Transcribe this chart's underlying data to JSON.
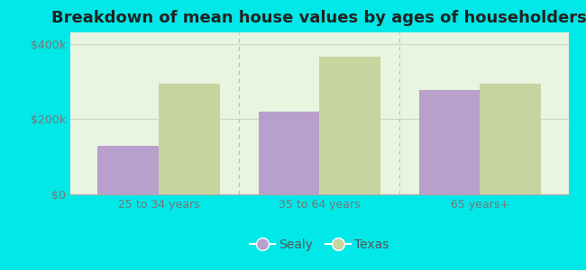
{
  "title": "Breakdown of mean house values by ages of householders",
  "categories": [
    "25 to 34 years",
    "35 to 64 years",
    "65 years+"
  ],
  "sealy_values": [
    130000,
    220000,
    278000
  ],
  "texas_values": [
    293000,
    365000,
    293000
  ],
  "sealy_color": "#b99fcc",
  "texas_color": "#c8d4a0",
  "background_color": "#00e8e8",
  "plot_bg_color": "#e8f5e0",
  "ylabel_ticks": [
    0,
    200000,
    400000
  ],
  "ylabel_labels": [
    "$0",
    "$200k",
    "$400k"
  ],
  "ylim": [
    0,
    430000
  ],
  "bar_width": 0.38,
  "legend_labels": [
    "Sealy",
    "Texas"
  ],
  "title_fontsize": 13,
  "tick_fontsize": 9,
  "legend_fontsize": 10,
  "group_sep_color": "#b0c8b0",
  "grid_color": "#c8d8c0"
}
